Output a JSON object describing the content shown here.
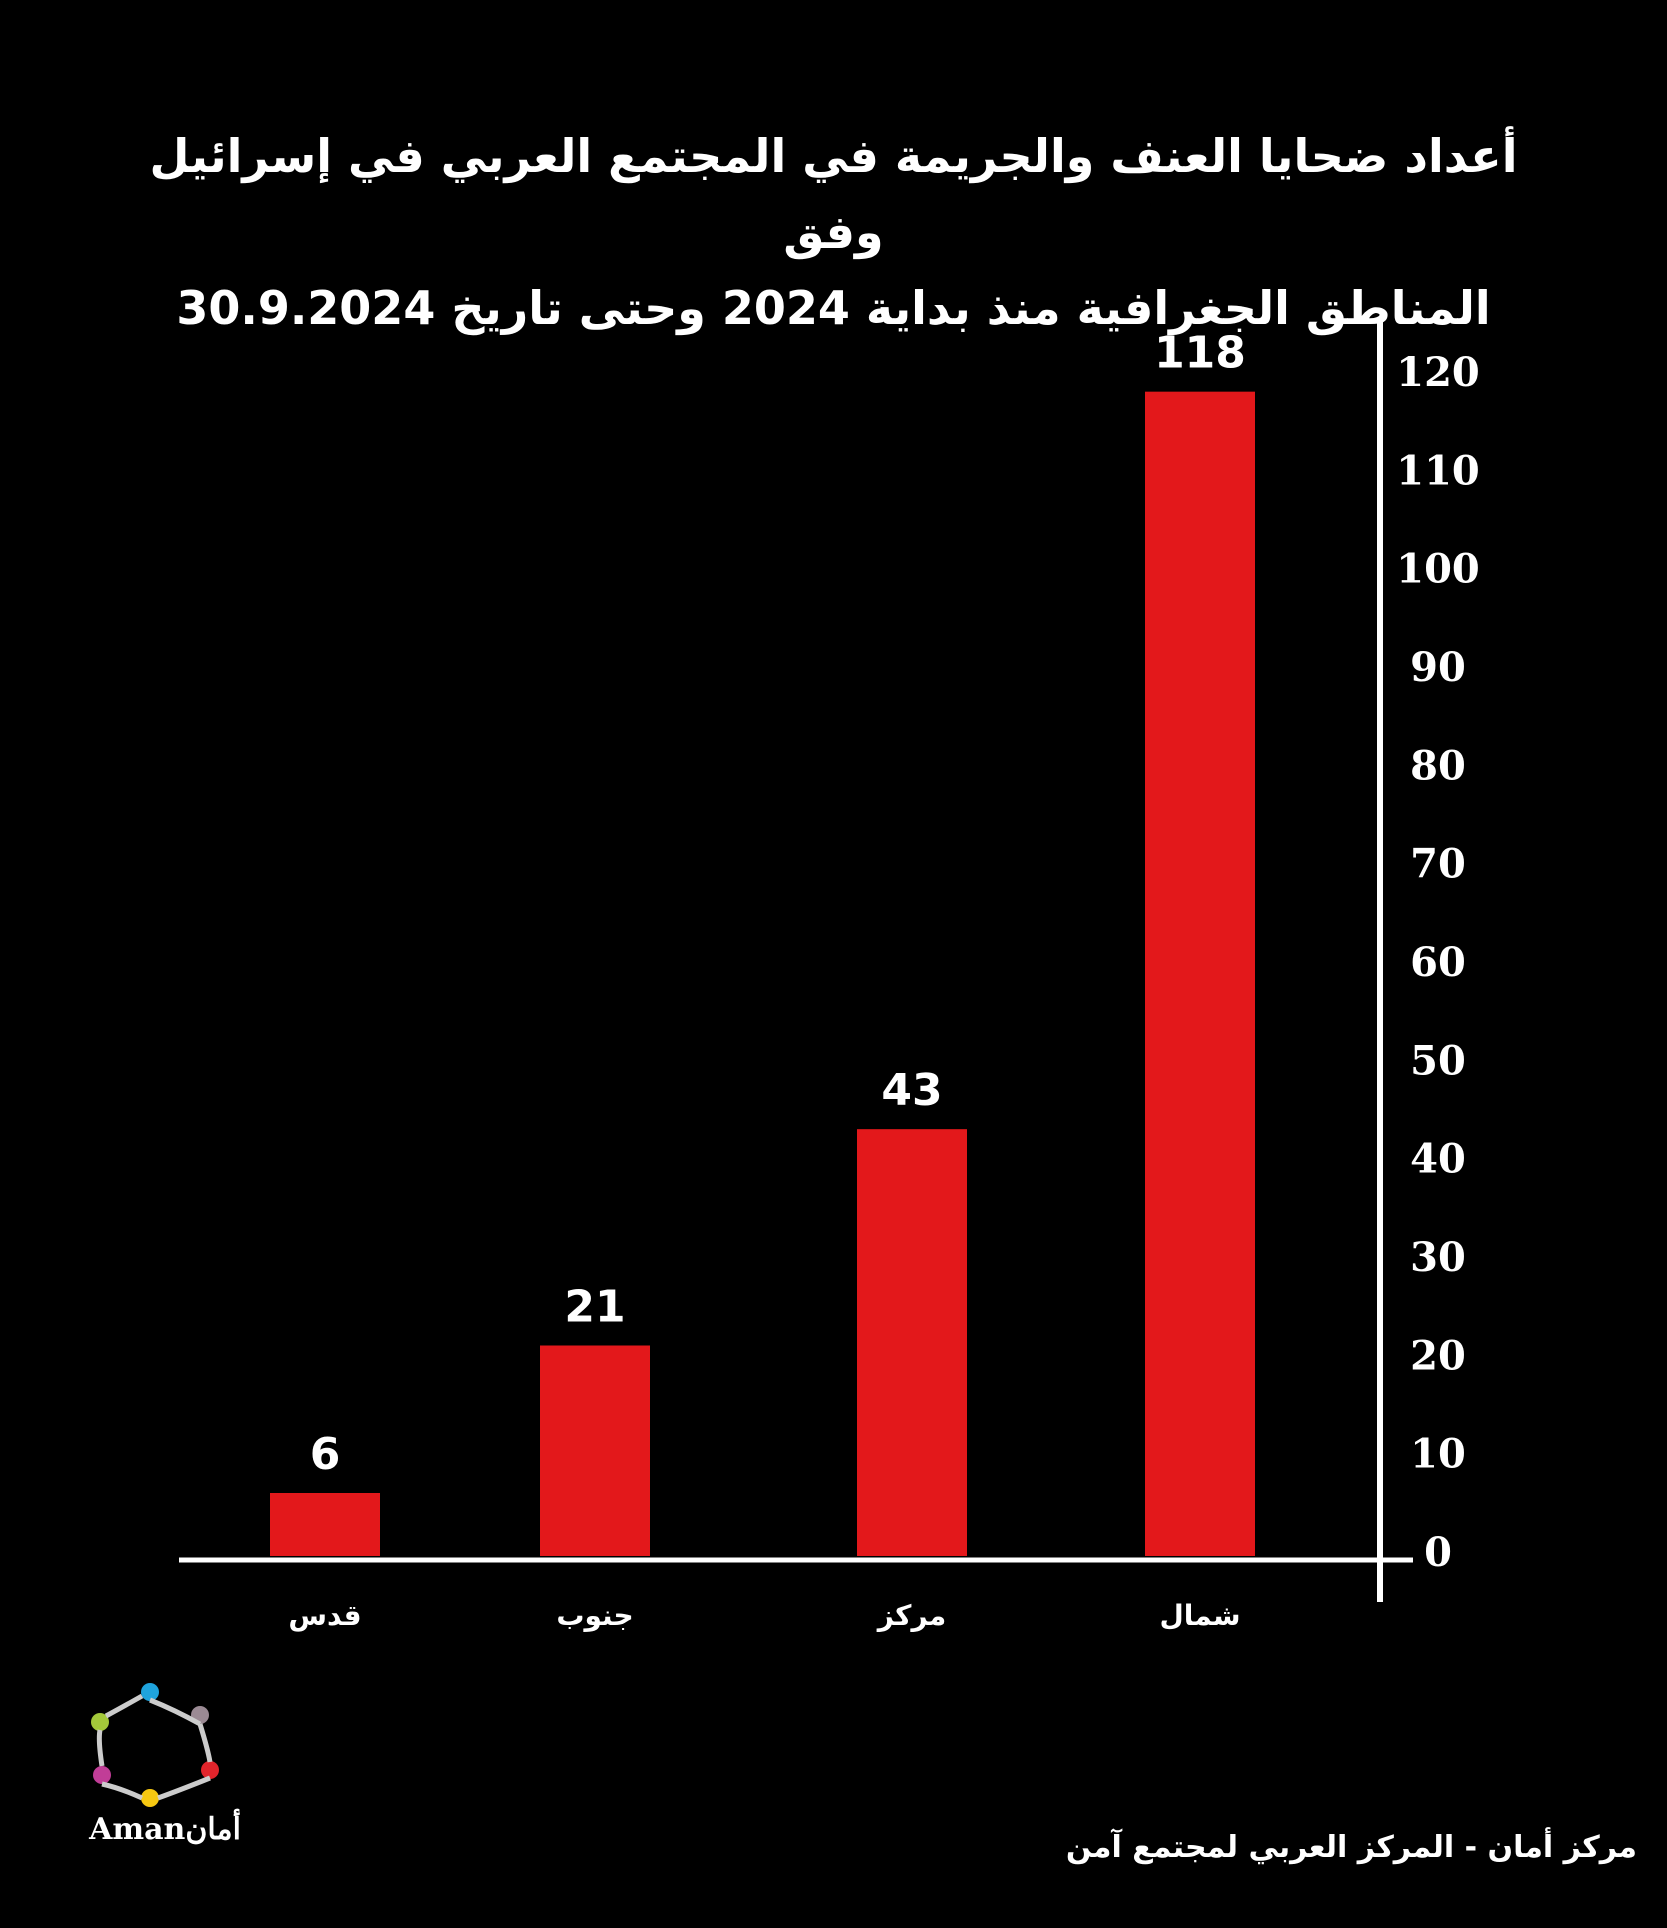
{
  "chart_data": {
    "type": "bar",
    "title": "أعداد ضحايا العنف والجريمة في المجتمع العربي في إسرائيل وفق المناطق الجغرافية منذ بداية 2024 وحتى تاريخ 30.9.2024",
    "title_lines": [
      "أعداد ضحايا العنف والجريمة في المجتمع العربي في إسرائيل وفق",
      "المناطق الجغرافية منذ بداية 2024 وحتى تاريخ 30.9.2024"
    ],
    "categories": [
      "قدس",
      "جنوب",
      "مركز",
      "شمال"
    ],
    "values": [
      6,
      21,
      43,
      118
    ],
    "ylim": [
      0,
      120
    ],
    "yticks": [
      0,
      10,
      20,
      30,
      40,
      50,
      60,
      70,
      80,
      90,
      100,
      110,
      120
    ],
    "yaxis_side": "right",
    "grid": false,
    "bar_color": "#e3181b",
    "background": "#000000",
    "text_color": "#ffffff"
  },
  "footer": {
    "text": "مركز أمان - المركز العربي لمجتمع آمن"
  },
  "logo": {
    "text": "Amanأمان"
  }
}
